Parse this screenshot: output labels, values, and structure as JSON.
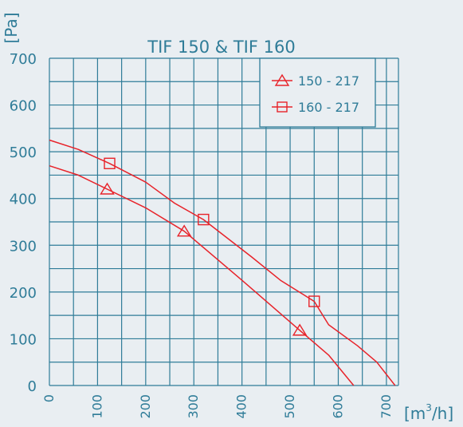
{
  "chart_data": {
    "type": "line",
    "title": "TIF 150 & TIF 160",
    "ylabel": "[Pa]",
    "xlabel_prefix": "[m",
    "xlabel_sup": "3",
    "xlabel_suffix": "/h]",
    "xlim": [
      0,
      725
    ],
    "ylim": [
      0,
      700
    ],
    "grid": true,
    "legend_position": "top-right",
    "x_ticks": [
      "0",
      "100",
      "200",
      "300",
      "400",
      "500",
      "600",
      "700"
    ],
    "y_ticks": [
      "0",
      "100",
      "200",
      "300",
      "400",
      "500",
      "600",
      "700"
    ],
    "series": [
      {
        "name": "150 - 217",
        "marker": "triangle",
        "color": "#e8232a",
        "points": [
          [
            0,
            470
          ],
          [
            60,
            450
          ],
          [
            120,
            420
          ],
          [
            200,
            380
          ],
          [
            280,
            330
          ],
          [
            400,
            225
          ],
          [
            520,
            118
          ],
          [
            580,
            65
          ],
          [
            632,
            0
          ]
        ],
        "marker_points": [
          [
            120,
            420
          ],
          [
            280,
            330
          ],
          [
            520,
            118
          ]
        ]
      },
      {
        "name": "160 - 217",
        "marker": "square",
        "color": "#e8232a",
        "points": [
          [
            0,
            525
          ],
          [
            60,
            505
          ],
          [
            125,
            475
          ],
          [
            200,
            435
          ],
          [
            260,
            390
          ],
          [
            320,
            355
          ],
          [
            420,
            275
          ],
          [
            480,
            225
          ],
          [
            550,
            180
          ],
          [
            580,
            130
          ],
          [
            640,
            85
          ],
          [
            680,
            50
          ],
          [
            718,
            0
          ]
        ],
        "marker_points": [
          [
            125,
            475
          ],
          [
            320,
            355
          ],
          [
            550,
            180
          ]
        ]
      }
    ],
    "colors": {
      "background": "#e9eef2",
      "grid": "#2f7c98",
      "text": "#2f7c98",
      "series": "#e8232a"
    }
  }
}
